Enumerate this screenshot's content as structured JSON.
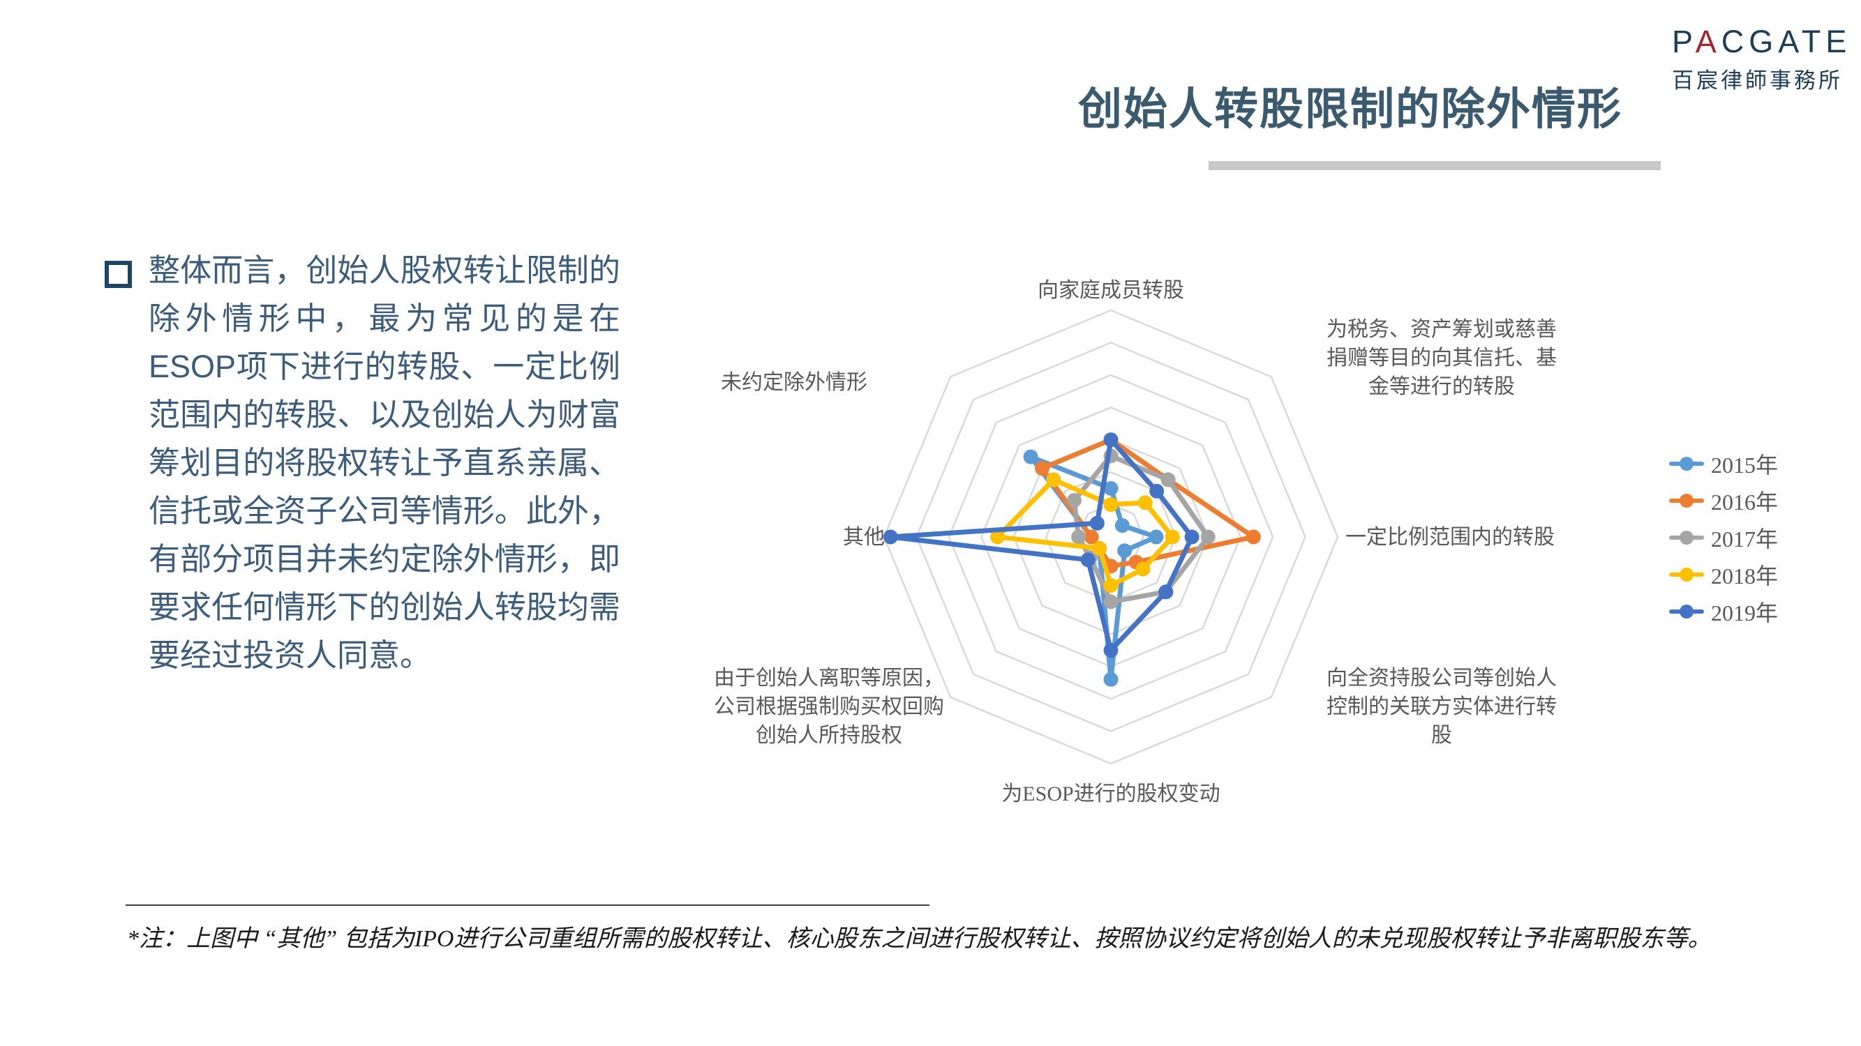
{
  "logo": {
    "brand_first": "P",
    "brand_accent": "A",
    "brand_rest": "CGATE",
    "name": "PACGATE",
    "subtitle": "百宸律師事務所"
  },
  "header": {
    "title": "创始人转股限制的除外情形"
  },
  "summary": {
    "text": "整体而言，创始人股权转让限制的除外情形中，最为常见的是在ESOP项下进行的转股、一定比例范围内的转股、以及创始人为财富筹划目的将股权转让予直系亲属、信托或全资子公司等情形。此外，有部分项目并未约定除外情形，即要求任何情形下的创始人转股均需要经过投资人同意。"
  },
  "chart_data": {
    "type": "radar",
    "title": "",
    "grid": "on",
    "legend_position": "right",
    "radial_axis": {
      "rings": 7,
      "max": 7,
      "tick_labels_visible": false
    },
    "categories": [
      {
        "label": "向家庭成员转股",
        "lines": [
          "向家庭成员转股"
        ]
      },
      {
        "label": "为税务、资产筹划或慈善捐赠等目的向其信托、基金等进行的转股",
        "lines": [
          "为税务、资产筹划或慈善",
          "捐赠等目的向其信托、基",
          "金等进行的转股"
        ]
      },
      {
        "label": "一定比例范围内的转股",
        "lines": [
          "一定比例范围内的转股"
        ]
      },
      {
        "label": "向全资持股公司等创始人控制的关联方实体进行转股",
        "lines": [
          "向全资持股公司等创始人",
          "控制的关联方实体进行转",
          "股"
        ]
      },
      {
        "label": "为ESOP进行的股权变动",
        "lines": [
          "为ESOP进行的股权变动"
        ]
      },
      {
        "label": "由于创始人离职等原因，公司根据强制购买权回购创始人所持股权",
        "lines": [
          "由于创始人离职等原因，",
          "公司根据强制购买权回购",
          "创始人所持股权"
        ]
      },
      {
        "label": "其他",
        "lines": [
          "其他"
        ]
      },
      {
        "label": "未约定除外情形",
        "lines": [
          "未约定除外情形"
        ]
      }
    ],
    "series": [
      {
        "name": "2015年",
        "color": "#5B9BD5",
        "values": [
          1.5,
          0.5,
          1.4,
          0.6,
          4.4,
          0.5,
          0.6,
          3.5
        ]
      },
      {
        "name": "2016年",
        "color": "#ED7D31",
        "values": [
          3.0,
          2.5,
          4.4,
          1.1,
          0.9,
          0.5,
          0.6,
          3.0
        ]
      },
      {
        "name": "2017年",
        "color": "#A5A5A5",
        "values": [
          2.5,
          2.5,
          3.0,
          2.4,
          2.0,
          0.9,
          1.0,
          1.6
        ]
      },
      {
        "name": "2018年",
        "color": "#FFC000",
        "values": [
          1.0,
          1.5,
          1.9,
          1.4,
          1.5,
          0.5,
          3.5,
          2.5
        ]
      },
      {
        "name": "2019年",
        "color": "#4472C4",
        "values": [
          3.0,
          2.0,
          2.5,
          2.4,
          3.5,
          1.0,
          6.8,
          0.6
        ]
      }
    ],
    "value_note": "values estimated in gridline-ring units, outer ring = 7 (no numeric tick labels shown)"
  },
  "footnote": {
    "text": "*注：上图中 “其他” 包括为IPO进行公司重组所需的股权转让、核心股东之间进行股权转让、按照协议约定将创始人的未兑现股权转让予非离职股东等。"
  }
}
